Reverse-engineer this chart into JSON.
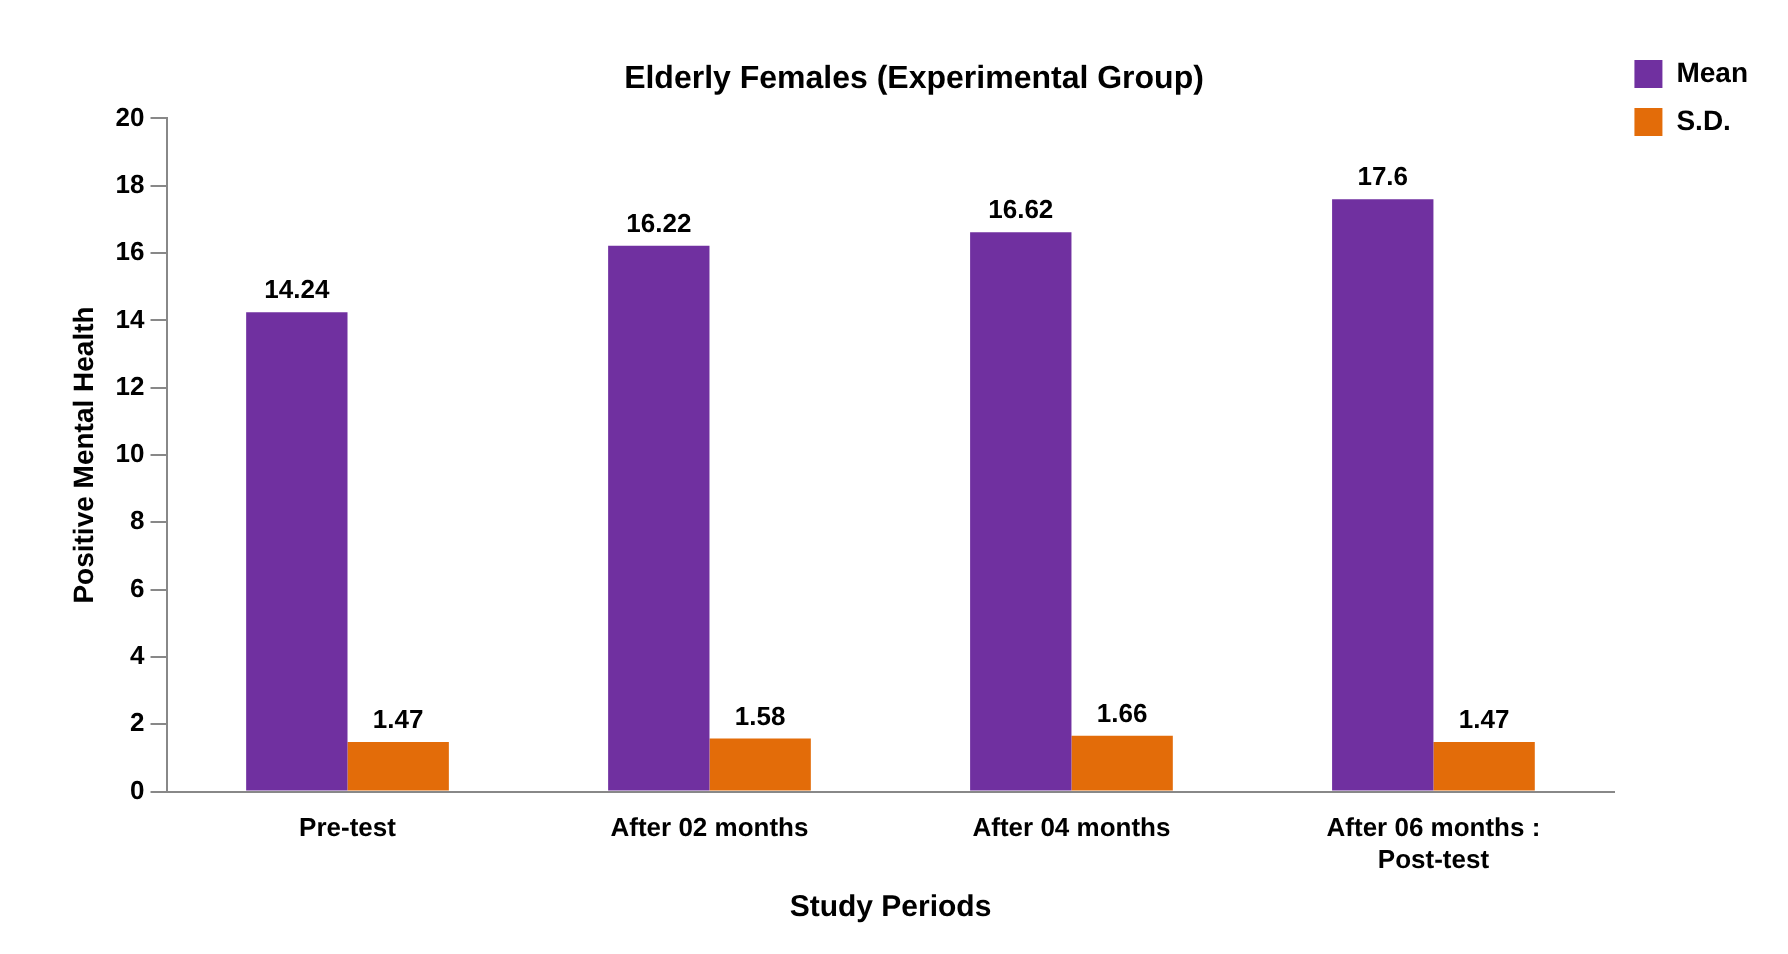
{
  "chart_data": {
    "type": "bar",
    "title": "Elderly Females (Experimental Group)",
    "xlabel": "Study Periods",
    "ylabel": "Positive Mental Health",
    "categories": [
      "Pre-test",
      "After 02 months",
      "After 04 months",
      "After 06 months : Post-test"
    ],
    "series": [
      {
        "name": "Mean",
        "color": "#7030a0",
        "values": [
          14.24,
          16.22,
          16.62,
          17.6
        ]
      },
      {
        "name": "S.D.",
        "color": "#e36c09",
        "values": [
          1.47,
          1.58,
          1.66,
          1.47
        ]
      }
    ],
    "ylim": [
      0,
      20
    ],
    "yticks": [
      0,
      2,
      4,
      6,
      8,
      10,
      12,
      14,
      16,
      18,
      20
    ],
    "grid": false,
    "legend": "right",
    "data_labels": true
  }
}
